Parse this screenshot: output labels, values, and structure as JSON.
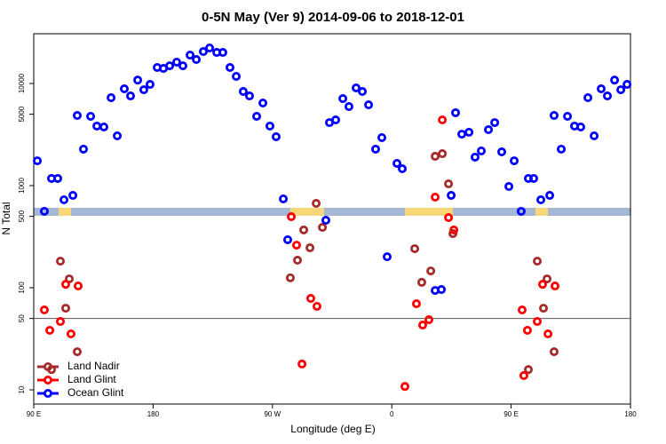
{
  "chart_data": {
    "type": "scatter",
    "title": "0-5N May (Ver 9)   2014-09-06 to 2018-12-01",
    "xlabel": "Longitude (deg E)",
    "ylabel": "N Total",
    "log_y": true,
    "legend": "lower left",
    "hline": 50,
    "xlim": [
      90,
      540
    ],
    "ylim": [
      7.26,
      30700
    ],
    "xticks": [
      {
        "value": 90,
        "label": "90 E"
      },
      180,
      {
        "value": 270,
        "label": "90 W"
      },
      {
        "value": 360,
        "label": "0"
      },
      {
        "value": 450,
        "label": "90 E"
      },
      {
        "value": 540,
        "label": "180"
      }
    ],
    "yticks": [
      10,
      50,
      100,
      500,
      1000,
      5000,
      10000
    ],
    "series": [
      {
        "name": "Land Nadir",
        "color": "#a52a2a",
        "x": [
          110.1,
          114.1,
          116.8,
          122.8,
          103.4,
          283.5,
          288.9,
          293.6,
          298.3,
          303,
          307.7,
          377.3,
          382.6,
          389.4,
          392.7,
          398.1,
          402.8,
          406.1,
          463,
          469.7,
          474.4,
          477.1,
          482.4
        ],
        "values": [
          182,
          63,
          122,
          23.6,
          15.8,
          125,
          186,
          368,
          246,
          670,
          390,
          241,
          113,
          146,
          1935,
          2055,
          1040,
          339,
          15.8,
          182,
          63,
          122,
          23.6
        ]
      },
      {
        "name": "Land Glint",
        "color": "#ff0000",
        "x": [
          98,
          102.1,
          110.1,
          114.1,
          118.1,
          123.5,
          284.2,
          288.2,
          292.3,
          298.9,
          303.6,
          369.9,
          378.6,
          383.3,
          388,
          392.7,
          398.1,
          402.8,
          406.8,
          458.3,
          462.3,
          469.7,
          473.7,
          477.8,
          483.1,
          459.6
        ],
        "values": [
          60.6,
          38.3,
          46.7,
          108,
          35.3,
          104,
          496,
          261,
          17.9,
          78.6,
          65.7,
          10.8,
          69.7,
          43.1,
          48.6,
          771,
          4400,
          486,
          368,
          60.6,
          38.3,
          46.7,
          108,
          35.3,
          104,
          13.8
        ]
      },
      {
        "name": "Ocean Glint",
        "color": "#0000ff",
        "x": [
          92.7,
          98,
          103.4,
          108.1,
          112.8,
          119.5,
          122.8,
          127.5,
          132.9,
          137.6,
          142.9,
          148.3,
          153,
          158.3,
          163,
          168.4,
          173,
          177.7,
          183.1,
          187.8,
          192.5,
          197.8,
          202.5,
          207.9,
          212.6,
          217.9,
          222.6,
          228,
          232.6,
          238,
          242.7,
          248,
          252.7,
          258.1,
          262.8,
          268.1,
          272.8,
          278.2,
          281.5,
          310.3,
          313,
          317.7,
          323.1,
          327.7,
          333.1,
          337.8,
          342.5,
          347.8,
          352.5,
          356.5,
          363.9,
          367.9,
          392.7,
          397.4,
          404.8,
          408.1,
          412.8,
          418.2,
          422.8,
          427.5,
          432.9,
          437.6,
          442.9,
          448.3,
          452.3,
          457.6,
          463,
          467,
          472.4,
          479.1,
          482.4,
          487.8,
          492.5,
          497.8,
          502.5,
          507.9,
          512.6,
          517.9,
          522.6,
          528,
          532.7,
          537.4
        ],
        "values": [
          1750,
          560,
          1175,
          1175,
          726,
          802,
          4860,
          2275,
          4770,
          3830,
          3750,
          7260,
          3070,
          8870,
          7550,
          10800,
          8680,
          9800,
          14350,
          14050,
          14900,
          16180,
          14900,
          18970,
          17170,
          20560,
          22280,
          20150,
          20150,
          14350,
          11740,
          8350,
          7550,
          4770,
          6440,
          3830,
          3010,
          741,
          295,
          458,
          4140,
          4400,
          7110,
          5940,
          9050,
          8350,
          6180,
          2275,
          2950,
          201,
          1650,
          1463,
          94,
          96,
          802,
          5170,
          3190,
          3330,
          1900,
          2185,
          3530,
          4140,
          2140,
          980,
          1750,
          560,
          1175,
          1175,
          726,
          802,
          4860,
          2275,
          4770,
          3830,
          3750,
          7260,
          3070,
          8870,
          7550,
          10800,
          8680,
          9800
        ]
      }
    ]
  }
}
